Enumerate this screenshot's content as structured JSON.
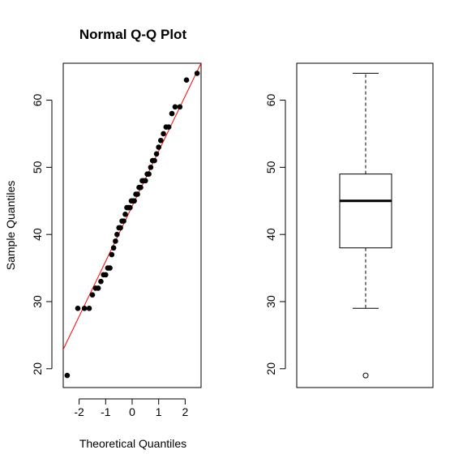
{
  "chart_data": [
    {
      "type": "scatter",
      "title": "Normal Q-Q Plot",
      "xlabel": "Theoretical Quantiles",
      "ylabel": "Sample Quantiles",
      "xlim": [
        -2.6,
        2.6
      ],
      "ylim": [
        17.2,
        65.5
      ],
      "xticks": [
        -2,
        -1,
        0,
        1,
        2
      ],
      "xtick_labels": [
        "-2",
        "-1",
        "0",
        "1",
        "2"
      ],
      "yticks": [
        20,
        30,
        40,
        50,
        60
      ],
      "ytick_labels": [
        "20",
        "30",
        "40",
        "50",
        "60"
      ],
      "grid": false,
      "point_color": "#000000",
      "line_color": "#ff0000",
      "reference_line": {
        "intercept": 44.2,
        "slope": 8.2
      },
      "points": [
        [
          -2.45,
          19
        ],
        [
          -2.05,
          29
        ],
        [
          -1.8,
          29
        ],
        [
          -1.62,
          29
        ],
        [
          -1.5,
          31
        ],
        [
          -1.38,
          32
        ],
        [
          -1.28,
          32
        ],
        [
          -1.18,
          33
        ],
        [
          -1.08,
          34
        ],
        [
          -1.0,
          34
        ],
        [
          -0.92,
          35
        ],
        [
          -0.84,
          35
        ],
        [
          -0.77,
          37
        ],
        [
          -0.7,
          38
        ],
        [
          -0.63,
          39
        ],
        [
          -0.57,
          40
        ],
        [
          -0.5,
          41
        ],
        [
          -0.44,
          41
        ],
        [
          -0.38,
          42
        ],
        [
          -0.32,
          42
        ],
        [
          -0.26,
          43
        ],
        [
          -0.2,
          44
        ],
        [
          -0.14,
          44
        ],
        [
          -0.08,
          44
        ],
        [
          -0.03,
          45
        ],
        [
          0.03,
          45
        ],
        [
          0.08,
          45
        ],
        [
          0.14,
          46
        ],
        [
          0.2,
          46
        ],
        [
          0.26,
          47
        ],
        [
          0.32,
          47
        ],
        [
          0.38,
          48
        ],
        [
          0.44,
          48
        ],
        [
          0.5,
          48
        ],
        [
          0.57,
          49
        ],
        [
          0.63,
          49
        ],
        [
          0.7,
          50
        ],
        [
          0.77,
          51
        ],
        [
          0.84,
          51
        ],
        [
          0.92,
          52
        ],
        [
          1.0,
          53
        ],
        [
          1.08,
          54
        ],
        [
          1.18,
          55
        ],
        [
          1.28,
          56
        ],
        [
          1.38,
          56
        ],
        [
          1.5,
          58
        ],
        [
          1.62,
          59
        ],
        [
          1.8,
          59
        ],
        [
          2.05,
          63
        ],
        [
          2.45,
          64
        ]
      ]
    },
    {
      "type": "box",
      "ylim": [
        17.2,
        65.5
      ],
      "yticks": [
        20,
        30,
        40,
        50,
        60
      ],
      "ytick_labels": [
        "20",
        "30",
        "40",
        "50",
        "60"
      ],
      "min_whisker": 29,
      "q1": 38,
      "median": 45,
      "q3": 49,
      "max_whisker": 64,
      "outliers": [
        19
      ]
    }
  ]
}
